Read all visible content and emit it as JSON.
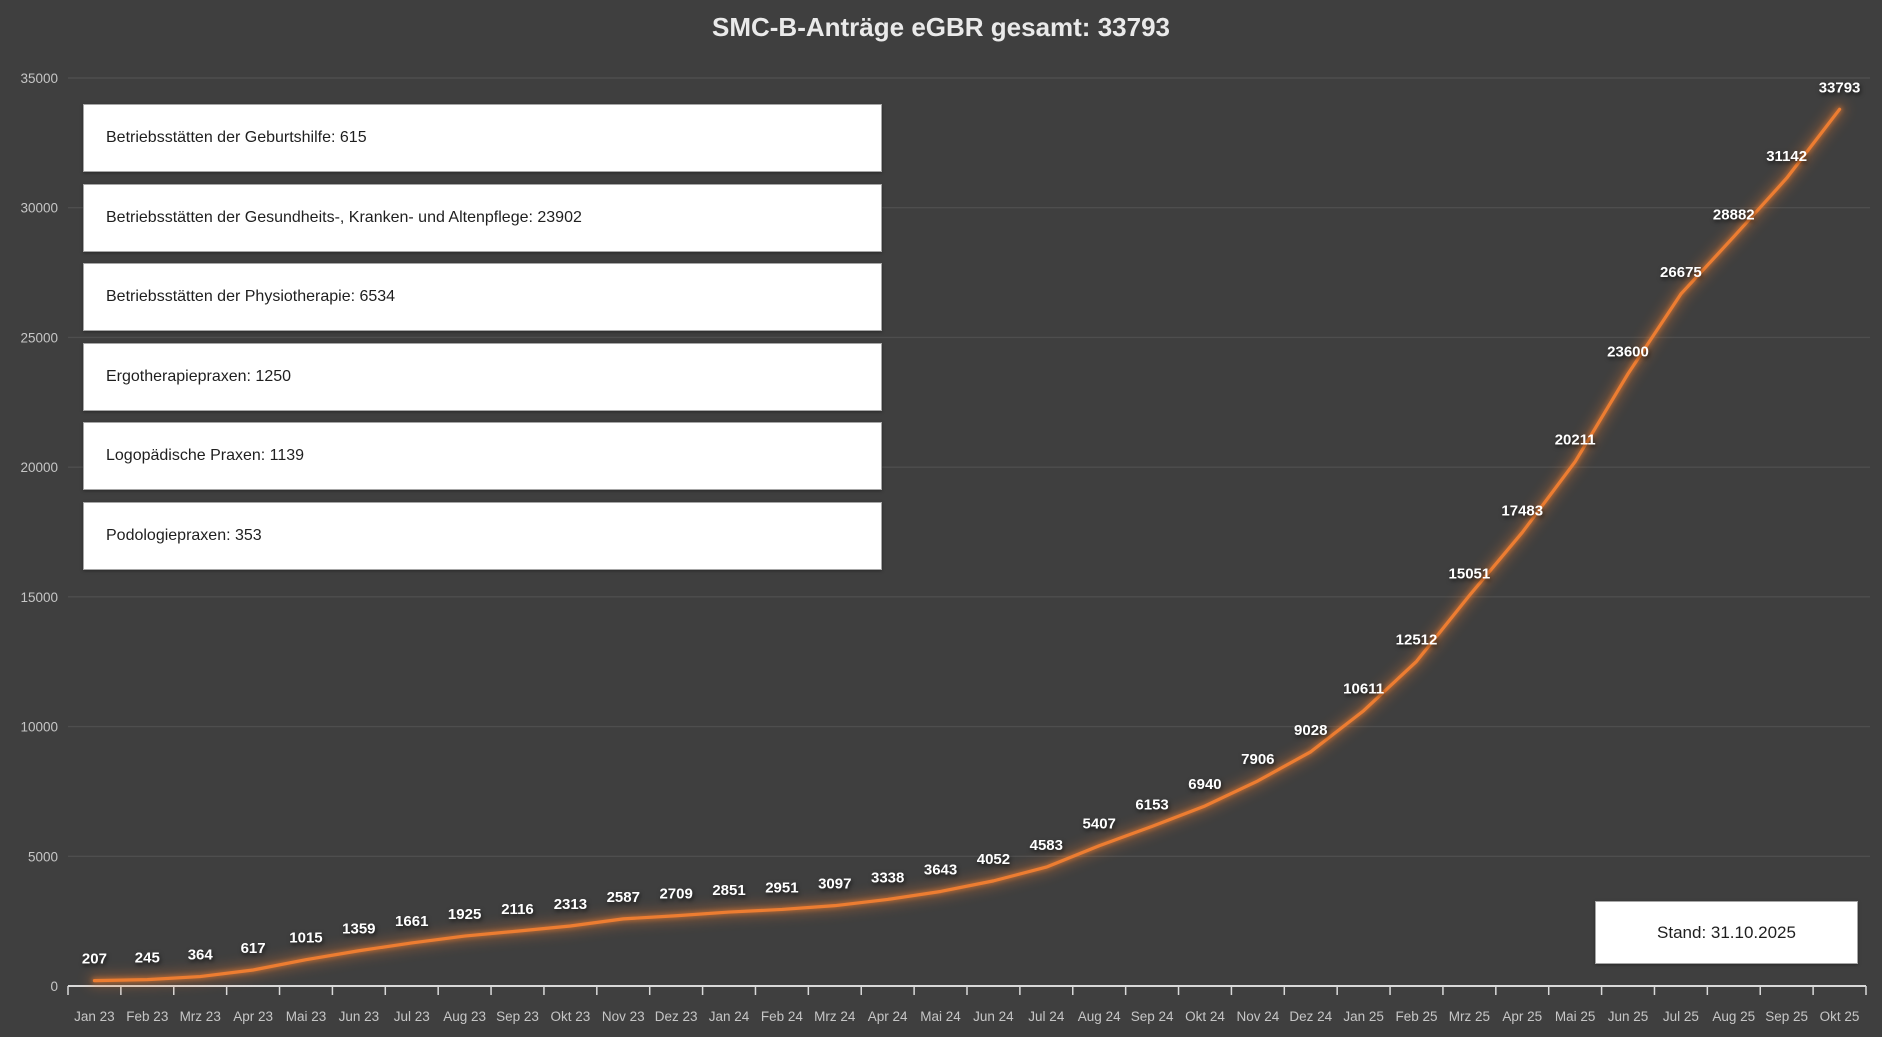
{
  "page": {
    "background": "#3F3F3F"
  },
  "chart_data": {
    "type": "line",
    "title": "SMC-B-Anträge eGBR gesamt: 33793",
    "total": 33793,
    "categories": [
      "Jan 23",
      "Feb 23",
      "Mrz 23",
      "Apr 23",
      "Mai 23",
      "Jun 23",
      "Jul 23",
      "Aug 23",
      "Sep 23",
      "Okt 23",
      "Nov 23",
      "Dez 23",
      "Jan 24",
      "Feb 24",
      "Mrz 24",
      "Apr 24",
      "Mai 24",
      "Jun 24",
      "Jul 24",
      "Aug 24",
      "Sep 24",
      "Okt 24",
      "Nov 24",
      "Dez 24",
      "Jan 25",
      "Feb 25",
      "Mrz 25",
      "Apr 25",
      "Mai 25",
      "Jun 25",
      "Jul 25",
      "Aug 25",
      "Sep 25",
      "Okt 25"
    ],
    "values": [
      207,
      245,
      364,
      617,
      1015,
      1359,
      1661,
      1925,
      2116,
      2313,
      2587,
      2709,
      2851,
      2951,
      3097,
      3338,
      3643,
      4052,
      4583,
      5407,
      6153,
      6940,
      7906,
      9028,
      10611,
      12512,
      15051,
      17483,
      20211,
      23600,
      26675,
      28882,
      31142,
      33793
    ],
    "xlabel": "",
    "ylabel": "",
    "ylim": [
      0,
      35000
    ],
    "y_ticks": [
      0,
      5000,
      10000,
      15000,
      20000,
      25000,
      30000,
      35000
    ],
    "grid": true,
    "legend_position": "none",
    "data_labels": true,
    "line_color": "#ED7D31",
    "data_label_color": "#FFFFFF",
    "axis_color": "#D9D9D9",
    "tick_label_color": "#C6C6C6",
    "gridline_color": "#4E4E4E"
  },
  "legend_boxes": {
    "items": [
      {
        "text": "Betriebsstätten der Geburtshilfe: 615"
      },
      {
        "text": "Betriebsstätten der Gesundheits-, Kranken- und Altenpflege: 23902"
      },
      {
        "text": "Betriebsstätten der Physiotherapie: 6534"
      },
      {
        "text": "Ergotherapiepraxen: 1250"
      },
      {
        "text": "Logopädische Praxen: 1139"
      },
      {
        "text": "Podologiepraxen: 353"
      }
    ]
  },
  "footer": {
    "stand_label": "Stand: 31.10.2025"
  }
}
